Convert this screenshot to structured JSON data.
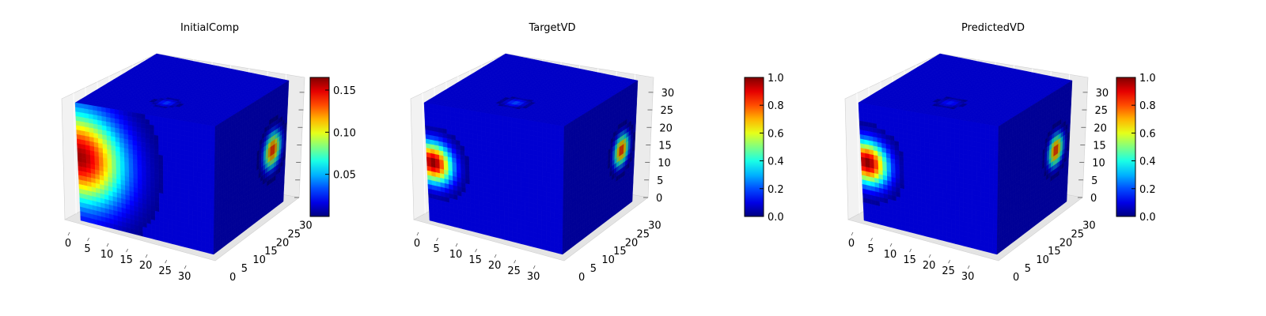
{
  "chart_data": [
    {
      "type": "heatmap",
      "style": "3d-voxel",
      "title": "InitialComp",
      "xlabel": "",
      "ylabel": "",
      "zlabel": "",
      "xlim": [
        0,
        32
      ],
      "ylim": [
        0,
        32
      ],
      "zlim": [
        0,
        32
      ],
      "x_ticks": [
        "0",
        "5",
        "10",
        "15",
        "20",
        "25",
        "30"
      ],
      "y_ticks": [
        "0",
        "5",
        "10",
        "15",
        "20",
        "25",
        "30"
      ],
      "z_ticks": [],
      "colormap": "jet",
      "colorbar": {
        "min": 0.0,
        "max": 0.165,
        "ticks": [
          "0.05",
          "0.10",
          "0.15"
        ],
        "tick_values": [
          0.05,
          0.1,
          0.15
        ]
      },
      "hotspots": [
        {
          "face": "front",
          "u": 0.5,
          "v": 12,
          "value": 0.16,
          "radius": 7
        },
        {
          "face": "side",
          "u": 26,
          "v": 13,
          "value": 0.14,
          "radius": 2.5
        },
        {
          "face": "top",
          "u": 16,
          "v": 24,
          "value": 0.03,
          "radius": 1.5
        }
      ]
    },
    {
      "type": "heatmap",
      "style": "3d-voxel",
      "title": "TargetVD",
      "xlabel": "",
      "ylabel": "",
      "zlabel": "",
      "xlim": [
        0,
        32
      ],
      "ylim": [
        0,
        32
      ],
      "zlim": [
        0,
        32
      ],
      "x_ticks": [
        "0",
        "5",
        "10",
        "15",
        "20",
        "25",
        "30"
      ],
      "y_ticks": [
        "0",
        "5",
        "10",
        "15",
        "20",
        "25",
        "30"
      ],
      "z_ticks": [
        "0",
        "5",
        "10",
        "15",
        "20",
        "25",
        "30"
      ],
      "colormap": "jet",
      "colorbar": {
        "min": 0.0,
        "max": 1.0,
        "ticks": [
          "0.0",
          "0.2",
          "0.4",
          "0.6",
          "0.8",
          "1.0"
        ],
        "tick_values": [
          0.0,
          0.2,
          0.4,
          0.6,
          0.8,
          1.0
        ]
      },
      "hotspots": [
        {
          "face": "front",
          "u": 1.5,
          "v": 13,
          "value": 1.0,
          "radius": 3
        },
        {
          "face": "side",
          "u": 26,
          "v": 13,
          "value": 0.85,
          "radius": 2.2
        },
        {
          "face": "top",
          "u": 16,
          "v": 24,
          "value": 0.2,
          "radius": 1.6
        }
      ]
    },
    {
      "type": "heatmap",
      "style": "3d-voxel",
      "title": "PredictedVD",
      "xlabel": "",
      "ylabel": "",
      "zlabel": "",
      "xlim": [
        0,
        32
      ],
      "ylim": [
        0,
        32
      ],
      "zlim": [
        0,
        32
      ],
      "x_ticks": [
        "0",
        "5",
        "10",
        "15",
        "20",
        "25",
        "30"
      ],
      "y_ticks": [
        "0",
        "5",
        "10",
        "15",
        "20",
        "25",
        "30"
      ],
      "z_ticks": [
        "0",
        "5",
        "10",
        "15",
        "20",
        "25",
        "30"
      ],
      "colormap": "jet",
      "colorbar": {
        "min": 0.0,
        "max": 1.0,
        "ticks": [
          "0.0",
          "0.2",
          "0.4",
          "0.6",
          "0.8",
          "1.0"
        ],
        "tick_values": [
          0.0,
          0.2,
          0.4,
          0.6,
          0.8,
          1.0
        ]
      },
      "hotspots": [
        {
          "face": "front",
          "u": 1.5,
          "v": 13,
          "value": 1.0,
          "radius": 3.2
        },
        {
          "face": "side",
          "u": 26,
          "v": 13,
          "value": 0.85,
          "radius": 2.2
        },
        {
          "face": "top",
          "u": 16,
          "v": 24,
          "value": 0.15,
          "radius": 1.6
        }
      ]
    }
  ]
}
